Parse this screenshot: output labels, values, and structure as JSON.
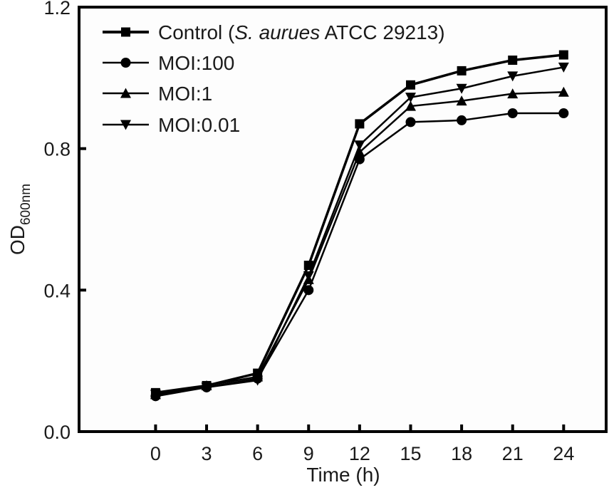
{
  "chart_data": {
    "type": "line",
    "title": "",
    "xlabel": "Time (h)",
    "ylabel": "OD",
    "ylabel_subscript": "600nm",
    "x": [
      0,
      3,
      6,
      9,
      12,
      15,
      18,
      21,
      24
    ],
    "x_tick_labels": [
      "0",
      "3",
      "6",
      "9",
      "12",
      "15",
      "18",
      "21",
      "24"
    ],
    "xlim": [
      -4.5,
      26.5
    ],
    "ylim": [
      0.0,
      1.2
    ],
    "y_ticks": [
      0.0,
      0.4,
      0.8,
      1.2
    ],
    "y_tick_labels": [
      "0.0",
      "0.4",
      "0.8",
      "1.2"
    ],
    "grid": false,
    "legend_position": "top-left",
    "series": [
      {
        "name": "Control",
        "name_parts": [
          {
            "text": "Control (",
            "italic": false
          },
          {
            "text": "S. aurues",
            "italic": true
          },
          {
            "text": " ATCC 29213)",
            "italic": false
          }
        ],
        "marker": "square",
        "color": "#000000",
        "values": [
          0.11,
          0.13,
          0.165,
          0.47,
          0.87,
          0.98,
          1.02,
          1.05,
          1.065
        ]
      },
      {
        "name": "MOI:100",
        "name_parts": [
          {
            "text": "MOI:100",
            "italic": false
          }
        ],
        "marker": "circle",
        "color": "#000000",
        "values": [
          0.1,
          0.125,
          0.15,
          0.4,
          0.77,
          0.875,
          0.88,
          0.9,
          0.9
        ]
      },
      {
        "name": "MOI:1",
        "name_parts": [
          {
            "text": "MOI:1",
            "italic": false
          }
        ],
        "marker": "triangle-up",
        "color": "#000000",
        "values": [
          0.105,
          0.13,
          0.155,
          0.43,
          0.79,
          0.92,
          0.935,
          0.955,
          0.96
        ]
      },
      {
        "name": "MOI:0.01",
        "name_parts": [
          {
            "text": "MOI:0.01",
            "italic": false
          }
        ],
        "marker": "triangle-down",
        "color": "#000000",
        "values": [
          0.105,
          0.125,
          0.145,
          0.44,
          0.81,
          0.945,
          0.97,
          1.005,
          1.03
        ]
      }
    ]
  }
}
